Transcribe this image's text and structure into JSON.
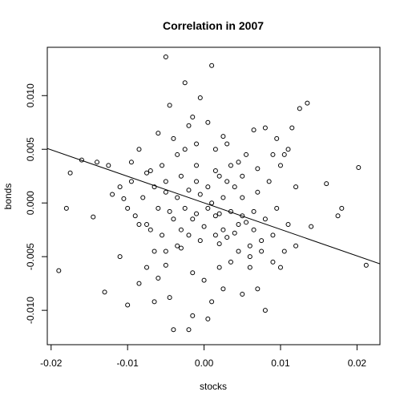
{
  "chart_data": {
    "type": "scatter",
    "title": "Correlation in 2007",
    "xlabel": "stocks",
    "ylabel": "bonds",
    "xlim": [
      -0.0205,
      0.023
    ],
    "ylim": [
      -0.0132,
      0.0145
    ],
    "x_ticks": [
      -0.02,
      -0.01,
      0.0,
      0.01,
      0.02
    ],
    "x_tick_labels": [
      "-0.02",
      "-0.01",
      "0.00",
      "0.01",
      "0.02"
    ],
    "y_ticks": [
      -0.01,
      -0.005,
      0.0,
      0.005,
      0.01
    ],
    "y_tick_labels": [
      "-0.010",
      "-0.005",
      "0.000",
      "0.005",
      "0.010"
    ],
    "grid": false,
    "marker": "open-circle",
    "regression_line": {
      "intercept": 1e-05,
      "slope": -0.247
    },
    "series": [
      {
        "points": [
          [
            -0.0005,
            0.0098
          ],
          [
            0.001,
            0.0128
          ],
          [
            -0.0025,
            0.0112
          ],
          [
            -0.005,
            0.0136
          ],
          [
            -0.002,
            0.0072
          ],
          [
            -0.0045,
            0.0091
          ],
          [
            -0.006,
            0.0065
          ],
          [
            -0.0035,
            0.0045
          ],
          [
            -0.0015,
            0.008
          ],
          [
            0.0005,
            0.0075
          ],
          [
            0.0025,
            0.0062
          ],
          [
            0.0045,
            0.0038
          ],
          [
            0.0065,
            0.0068
          ],
          [
            0.008,
            0.007
          ],
          [
            0.0095,
            0.006
          ],
          [
            0.011,
            0.005
          ],
          [
            0.0125,
            0.0088
          ],
          [
            0.0135,
            0.0093
          ],
          [
            0.0115,
            0.007
          ],
          [
            0.009,
            0.0045
          ],
          [
            0.01,
            0.0035
          ],
          [
            0.007,
            0.0032
          ],
          [
            0.005,
            0.0025
          ],
          [
            0.003,
            0.002
          ],
          [
            0.0015,
            0.003
          ],
          [
            -0.001,
            0.0035
          ],
          [
            -0.003,
            0.0025
          ],
          [
            -0.005,
            0.002
          ],
          [
            -0.007,
            0.003
          ],
          [
            -0.0085,
            0.005
          ],
          [
            -0.0095,
            0.0038
          ],
          [
            -0.011,
            0.0015
          ],
          [
            -0.0125,
            0.0035
          ],
          [
            -0.014,
            0.0038
          ],
          [
            -0.016,
            0.004
          ],
          [
            -0.0175,
            0.0028
          ],
          [
            -0.018,
            -0.0005
          ],
          [
            -0.0145,
            -0.0013
          ],
          [
            -0.012,
            0.0008
          ],
          [
            -0.0105,
            0.0004
          ],
          [
            -0.009,
            -0.0012
          ],
          [
            -0.0075,
            -0.002
          ],
          [
            -0.006,
            -0.0005
          ],
          [
            -0.0045,
            -0.0008
          ],
          [
            -0.003,
            -0.0025
          ],
          [
            -0.0015,
            -0.0015
          ],
          [
            0.0,
            -0.0022
          ],
          [
            0.0015,
            -0.0012
          ],
          [
            0.003,
            -0.0032
          ],
          [
            0.0045,
            -0.002
          ],
          [
            0.006,
            -0.004
          ],
          [
            0.0075,
            -0.0035
          ],
          [
            0.009,
            -0.003
          ],
          [
            0.0105,
            -0.0045
          ],
          [
            0.012,
            -0.004
          ],
          [
            0.014,
            -0.0022
          ],
          [
            0.016,
            0.0018
          ],
          [
            0.0175,
            -0.0012
          ],
          [
            0.018,
            -0.0005
          ],
          [
            0.0202,
            0.0033
          ],
          [
            0.0212,
            -0.0058
          ],
          [
            -0.019,
            -0.0063
          ],
          [
            -0.013,
            -0.0083
          ],
          [
            -0.01,
            -0.0095
          ],
          [
            -0.0085,
            -0.0075
          ],
          [
            -0.0065,
            -0.0092
          ],
          [
            -0.0045,
            -0.0088
          ],
          [
            -0.004,
            -0.0118
          ],
          [
            -0.002,
            -0.0118
          ],
          [
            -0.0015,
            -0.0105
          ],
          [
            0.0005,
            -0.0108
          ],
          [
            0.001,
            -0.0092
          ],
          [
            0.0025,
            -0.008
          ],
          [
            0.002,
            -0.006
          ],
          [
            0.005,
            -0.0085
          ],
          [
            0.007,
            -0.008
          ],
          [
            0.008,
            -0.01
          ],
          [
            0.01,
            -0.006
          ],
          [
            0.006,
            -0.005
          ],
          [
            0.0035,
            -0.0055
          ],
          [
            -0.006,
            -0.007
          ],
          [
            -0.0075,
            -0.006
          ],
          [
            -0.011,
            -0.005
          ],
          [
            -0.005,
            -0.0058
          ],
          [
            -0.003,
            -0.0042
          ],
          [
            -0.0015,
            -0.0065
          ],
          [
            0.0,
            -0.0072
          ],
          [
            0.002,
            -0.0038
          ],
          [
            0.004,
            -0.0028
          ],
          [
            0.0055,
            -0.0018
          ],
          [
            0.0065,
            -0.0008
          ],
          [
            0.008,
            -0.0015
          ],
          [
            0.0095,
            -0.0005
          ],
          [
            0.011,
            -0.002
          ],
          [
            0.012,
            0.0015
          ],
          [
            0.0105,
            0.0045
          ],
          [
            0.0085,
            0.002
          ],
          [
            0.007,
            0.001
          ],
          [
            0.005,
            0.0005
          ],
          [
            0.004,
            0.0015
          ],
          [
            0.0025,
            0.0005
          ],
          [
            0.001,
            0.0
          ],
          [
            -0.0005,
            0.0008
          ],
          [
            -0.002,
            0.0012
          ],
          [
            -0.0035,
            0.0005
          ],
          [
            -0.005,
            0.001
          ],
          [
            -0.0065,
            0.0015
          ],
          [
            -0.008,
            0.0005
          ],
          [
            -0.01,
            -0.0005
          ],
          [
            -0.0085,
            -0.002
          ],
          [
            -0.007,
            -0.0025
          ],
          [
            -0.0055,
            -0.003
          ],
          [
            -0.004,
            -0.0015
          ],
          [
            -0.0025,
            -0.0005
          ],
          [
            -0.001,
            -0.001
          ],
          [
            0.0005,
            -0.0005
          ],
          [
            0.002,
            -0.001
          ],
          [
            0.0035,
            -0.0008
          ],
          [
            0.005,
            -0.0012
          ],
          [
            0.0065,
            -0.0025
          ],
          [
            0.0075,
            -0.0045
          ],
          [
            0.009,
            -0.0055
          ],
          [
            0.006,
            -0.006
          ],
          [
            0.0045,
            -0.0045
          ],
          [
            0.0025,
            -0.0025
          ],
          [
            0.0015,
            -0.003
          ],
          [
            -0.0005,
            -0.0035
          ],
          [
            -0.002,
            -0.003
          ],
          [
            -0.0035,
            -0.004
          ],
          [
            -0.005,
            -0.0045
          ],
          [
            -0.0065,
            -0.0045
          ],
          [
            -0.001,
            0.002
          ],
          [
            0.0005,
            0.0015
          ],
          [
            0.002,
            0.0025
          ],
          [
            0.0035,
            0.0035
          ],
          [
            0.0055,
            0.0045
          ],
          [
            -0.0025,
            0.005
          ],
          [
            -0.004,
            0.006
          ],
          [
            -0.001,
            0.0055
          ],
          [
            0.0015,
            0.005
          ],
          [
            0.003,
            0.0055
          ],
          [
            -0.0055,
            0.0035
          ],
          [
            -0.0075,
            0.0028
          ],
          [
            -0.0095,
            0.002
          ]
        ]
      }
    ]
  }
}
